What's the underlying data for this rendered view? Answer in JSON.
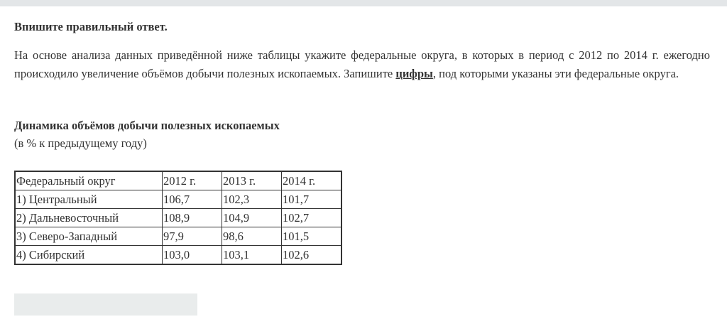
{
  "instruction": "Впишите правильный ответ.",
  "question": {
    "before": "На основе анализа данных приведённой ниже таблицы укажите федеральные округа, в которых в период с 2012 по 2014 г. ежегодно происходило увеличение объёмов добычи полезных ископаемых. Запишите ",
    "emphasis": "цифры",
    "after": ", под которыми указаны эти федеральные округа."
  },
  "table": {
    "title": "Динамика объёмов добычи полезных ископаемых",
    "subtitle": "(в % к предыдущему году)",
    "headers": [
      "Федеральный округ",
      "2012 г.",
      "2013 г.",
      "2014 г."
    ],
    "rows": [
      [
        "1) Центральный",
        "106,7",
        "102,3",
        "101,7"
      ],
      [
        "2) Дальневосточный",
        "108,9",
        "104,9",
        "102,7"
      ],
      [
        "3) Северо-Западный",
        "97,9",
        "98,6",
        "101,5"
      ],
      [
        "4) Сибирский",
        "103,0",
        "103,1",
        "102,6"
      ]
    ]
  },
  "answer": {
    "value": ""
  }
}
